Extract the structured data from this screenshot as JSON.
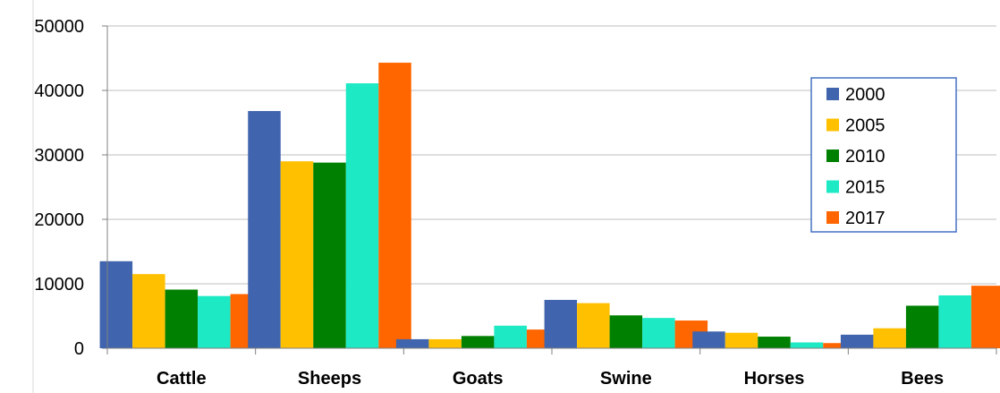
{
  "chart_data": {
    "type": "bar",
    "title": "",
    "xlabel": "",
    "ylabel": "",
    "categories": [
      "Cattle",
      "Sheeps",
      "Goats",
      "Swine",
      "Horses",
      "Bees"
    ],
    "y_ticks": [
      "0",
      "10000",
      "20000",
      "30000",
      "40000",
      "50000"
    ],
    "ylim": [
      0,
      50000
    ],
    "grid": true,
    "legend_position": "right",
    "series": [
      {
        "name": "2000",
        "color": "#4064AD",
        "values": [
          13500,
          36800,
          1400,
          7500,
          2600,
          2100
        ]
      },
      {
        "name": "2005",
        "color": "#FFC000",
        "values": [
          11500,
          29000,
          1400,
          7000,
          2400,
          3100
        ]
      },
      {
        "name": "2010",
        "color": "#008000",
        "values": [
          9100,
          28800,
          1900,
          5100,
          1800,
          6600
        ]
      },
      {
        "name": "2015",
        "color": "#1DE9C4",
        "values": [
          8100,
          41100,
          3500,
          4700,
          900,
          8200
        ]
      },
      {
        "name": "2017",
        "color": "#FF6600",
        "values": [
          8400,
          44300,
          2900,
          4300,
          800,
          9700
        ]
      }
    ]
  }
}
